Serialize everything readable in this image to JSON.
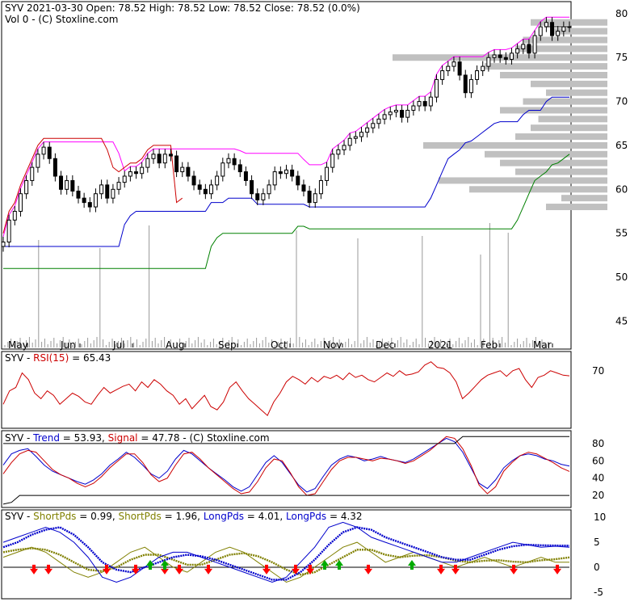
{
  "chart_data": [
    {
      "type": "candlestick",
      "panel": "price",
      "ticker_label": "SYV",
      "header": "2021-03-30 Open: 78.52  High: 78.52  Low: 78.52  Close: 78.52 (0.0%)",
      "subheader": "Vol 0   - (C) Stoxline.com",
      "x_labels": [
        "May",
        "Jun",
        "Jul",
        "Aug",
        "Sep",
        "Oct",
        "Nov",
        "Dec",
        "2021",
        "Feb",
        "Mar"
      ],
      "y_ticks": [
        45,
        50,
        55,
        60,
        65,
        70,
        75,
        80
      ],
      "ylim": [
        42,
        81
      ],
      "close": [
        54.0,
        56.5,
        57.5,
        59.5,
        61.0,
        62.5,
        64.0,
        64.8,
        63.5,
        61.5,
        60.0,
        61.0,
        59.8,
        59.0,
        58.5,
        58.0,
        59.5,
        60.5,
        59.0,
        60.0,
        60.8,
        61.5,
        62.0,
        61.8,
        62.5,
        63.5,
        64.0,
        63.0,
        64.0,
        63.8,
        62.0,
        62.5,
        61.5,
        60.5,
        60.0,
        59.5,
        60.5,
        61.5,
        63.0,
        63.5,
        62.8,
        62.0,
        61.0,
        59.5,
        58.8,
        59.5,
        60.5,
        62.0,
        61.8,
        62.2,
        61.5,
        60.5,
        59.8,
        58.5,
        59.5,
        61.0,
        62.5,
        64.0,
        64.5,
        65.0,
        65.8,
        66.0,
        66.5,
        67.0,
        67.5,
        68.0,
        68.5,
        68.8,
        69.0,
        68.2,
        69.0,
        69.5,
        70.0,
        69.5,
        70.5,
        72.5,
        73.5,
        74.0,
        74.5,
        73.0,
        71.0,
        72.5,
        73.5,
        74.0,
        75.0,
        75.3,
        75.0,
        74.8,
        75.5,
        76.0,
        76.5,
        75.5,
        77.5,
        78.5,
        79.0,
        77.5,
        78.0,
        78.5,
        78.52
      ],
      "volume_max_label": "",
      "series": [
        {
          "name": "",
          "color": "#ff00ff",
          "role": "upper-channel"
        },
        {
          "name": "",
          "color": "#0000cc",
          "role": "mid-channel"
        },
        {
          "name": "",
          "color": "#cc0000",
          "role": "stop-line"
        },
        {
          "name": "",
          "color": "#008000",
          "role": "lower-channel"
        }
      ],
      "volume_profile_levels": [
        58,
        59,
        60,
        61,
        62,
        63,
        64,
        65,
        66,
        67,
        68,
        69,
        70,
        71,
        72,
        73,
        74,
        75,
        76,
        77,
        78,
        79
      ],
      "volume_profile_values": [
        40,
        30,
        90,
        110,
        60,
        70,
        80,
        120,
        60,
        50,
        45,
        70,
        55,
        40,
        50,
        70,
        80,
        140,
        60,
        55,
        35,
        50
      ]
    },
    {
      "type": "line",
      "panel": "rsi",
      "label": "SYV - RSI(15) = 65.43",
      "label_parts": [
        "SYV - ",
        "RSI(15)",
        " = 65.43"
      ],
      "y_ticks": [
        70
      ],
      "ylim": [
        20,
        85
      ],
      "series": [
        {
          "name": "RSI(15)",
          "color": "#cc0000",
          "values": [
            40,
            52,
            55,
            68,
            62,
            50,
            45,
            52,
            48,
            40,
            45,
            50,
            47,
            42,
            40,
            48,
            55,
            50,
            53,
            56,
            58,
            52,
            60,
            55,
            62,
            58,
            52,
            48,
            40,
            45,
            36,
            42,
            48,
            38,
            35,
            42,
            55,
            60,
            52,
            45,
            40,
            35,
            30,
            42,
            50,
            60,
            65,
            62,
            58,
            64,
            60,
            65,
            63,
            66,
            62,
            68,
            64,
            66,
            62,
            60,
            64,
            68,
            65,
            70,
            66,
            67,
            69,
            75,
            78,
            73,
            72,
            68,
            60,
            45,
            50,
            56,
            62,
            66,
            68,
            70,
            65,
            70,
            72,
            62,
            55,
            64,
            66,
            70,
            68,
            66,
            65.43
          ]
        }
      ]
    },
    {
      "type": "line",
      "panel": "trend",
      "label_parts": [
        "SYV - ",
        "Trend",
        " = 53.93, ",
        "Signal",
        " = 47.78",
        " - (C) Stoxline.com"
      ],
      "y_ticks": [
        20,
        40,
        60,
        80
      ],
      "ylim": [
        8,
        92
      ],
      "series": [
        {
          "name": "Trend",
          "color": "#0000cc",
          "values": [
            55,
            68,
            72,
            74,
            65,
            55,
            48,
            44,
            40,
            36,
            33,
            38,
            45,
            55,
            62,
            70,
            64,
            55,
            45,
            40,
            48,
            62,
            72,
            68,
            60,
            52,
            45,
            38,
            30,
            25,
            30,
            44,
            58,
            66,
            58,
            45,
            32,
            24,
            28,
            42,
            55,
            62,
            66,
            64,
            60,
            62,
            65,
            62,
            60,
            58,
            62,
            68,
            74,
            80,
            86,
            82,
            70,
            52,
            34,
            28,
            38,
            52,
            60,
            66,
            68,
            66,
            62,
            60,
            56,
            53.93
          ]
        },
        {
          "name": "Signal",
          "color": "#cc0000",
          "values": [
            45,
            58,
            68,
            72,
            70,
            60,
            50,
            44,
            40,
            34,
            30,
            34,
            42,
            52,
            60,
            68,
            68,
            58,
            44,
            36,
            40,
            55,
            68,
            70,
            62,
            52,
            44,
            36,
            28,
            22,
            24,
            36,
            52,
            62,
            60,
            46,
            30,
            20,
            22,
            36,
            50,
            60,
            64,
            64,
            62,
            60,
            63,
            62,
            60,
            57,
            60,
            66,
            72,
            80,
            88,
            86,
            74,
            55,
            32,
            22,
            30,
            48,
            58,
            66,
            70,
            68,
            63,
            58,
            52,
            47.78
          ]
        },
        {
          "name": "",
          "color": "#000000",
          "role": "band",
          "values": [
            10,
            12,
            20,
            20,
            20,
            20,
            20,
            20,
            20,
            20,
            20,
            20,
            20,
            20,
            20,
            20,
            20,
            20,
            20,
            20,
            20,
            20,
            20,
            20,
            20,
            20,
            20,
            20,
            20,
            20,
            20,
            20,
            20,
            20,
            20,
            20,
            20,
            20,
            20,
            20,
            20,
            20,
            20,
            20,
            20,
            20,
            20,
            20,
            20,
            20,
            20,
            20,
            20,
            20,
            20,
            20,
            20,
            20,
            20,
            20,
            20,
            20,
            20,
            20,
            20,
            20,
            20,
            20,
            20,
            20
          ]
        },
        {
          "name": "",
          "color": "#000000",
          "role": "band",
          "values": [
            80,
            80,
            80,
            80,
            80,
            80,
            80,
            80,
            80,
            80,
            80,
            80,
            80,
            80,
            80,
            80,
            80,
            80,
            80,
            80,
            80,
            80,
            80,
            80,
            80,
            80,
            80,
            80,
            80,
            80,
            80,
            80,
            80,
            80,
            80,
            80,
            80,
            80,
            80,
            80,
            80,
            80,
            80,
            80,
            80,
            80,
            80,
            80,
            80,
            80,
            80,
            80,
            80,
            80,
            80,
            80,
            88,
            88,
            88,
            88,
            88,
            88,
            88,
            88,
            88,
            88,
            88,
            88,
            88,
            88
          ]
        }
      ]
    },
    {
      "type": "line",
      "panel": "pds",
      "label_parts": [
        "SYV - ",
        "ShortPds",
        " = 0.99, ",
        "ShortPds",
        " = 1.96, ",
        "LongPds",
        " = 4.01, ",
        "LongPds",
        " = 4.32"
      ],
      "y_ticks": [
        -5,
        0,
        5,
        10
      ],
      "ylim": [
        -6,
        11
      ],
      "series": [
        {
          "name": "ShortPds",
          "color": "#808000",
          "values": [
            2,
            3,
            4,
            3,
            1,
            -1,
            -2,
            -1,
            1,
            3,
            4,
            2,
            0,
            -1,
            1,
            3,
            4,
            3,
            1,
            -1,
            -3,
            -2,
            0,
            2,
            4,
            5,
            3,
            1,
            2,
            3,
            2,
            1,
            0,
            1,
            2,
            1,
            0,
            1,
            2,
            1,
            0.99
          ]
        },
        {
          "name": "ShortPds",
          "color": "#808000",
          "dotted": true,
          "values": [
            3,
            3.5,
            3.8,
            3.5,
            2.5,
            1,
            -0.5,
            -0.8,
            0,
            1.5,
            2.5,
            2.5,
            1.5,
            0.5,
            0.5,
            1.5,
            2.5,
            2.8,
            2.2,
            1,
            -0.5,
            -1.5,
            -1,
            0.5,
            2,
            3.5,
            3.5,
            2.5,
            2,
            2.3,
            2.4,
            2,
            1.3,
            1,
            1.3,
            1.4,
            1.1,
            1,
            1.4,
            1.6,
            1.96
          ]
        },
        {
          "name": "LongPds",
          "color": "#0000cc",
          "values": [
            5,
            6,
            7,
            8,
            7,
            5,
            2,
            -2,
            -3,
            -2,
            0,
            2,
            3,
            3,
            2,
            1,
            0,
            -1,
            -2,
            -3,
            -2,
            1,
            4,
            8,
            9,
            8,
            6,
            5,
            4,
            3,
            2,
            1,
            1,
            2,
            3,
            4,
            5,
            4.5,
            4,
            4.2,
            4.01
          ]
        },
        {
          "name": "LongPds",
          "color": "#0000cc",
          "dotted": true,
          "values": [
            4,
            5,
            6.5,
            7.5,
            8,
            6.5,
            4,
            1,
            -0.5,
            -1,
            0,
            1,
            2,
            2.5,
            2.2,
            1.5,
            0.5,
            -0.5,
            -1.5,
            -2.5,
            -2.5,
            -1,
            1.5,
            4.5,
            7,
            8,
            7.5,
            6,
            5,
            4,
            3,
            2,
            1.5,
            1.5,
            2.5,
            3.5,
            4.2,
            4.5,
            4.4,
            4.35,
            4.32
          ]
        }
      ],
      "buy_signals": [
        9,
        10,
        21,
        22,
        27
      ],
      "sell_signals": [
        1,
        2,
        6,
        8,
        10,
        11,
        13,
        17,
        19,
        20,
        24,
        29,
        30,
        34,
        37
      ]
    }
  ]
}
